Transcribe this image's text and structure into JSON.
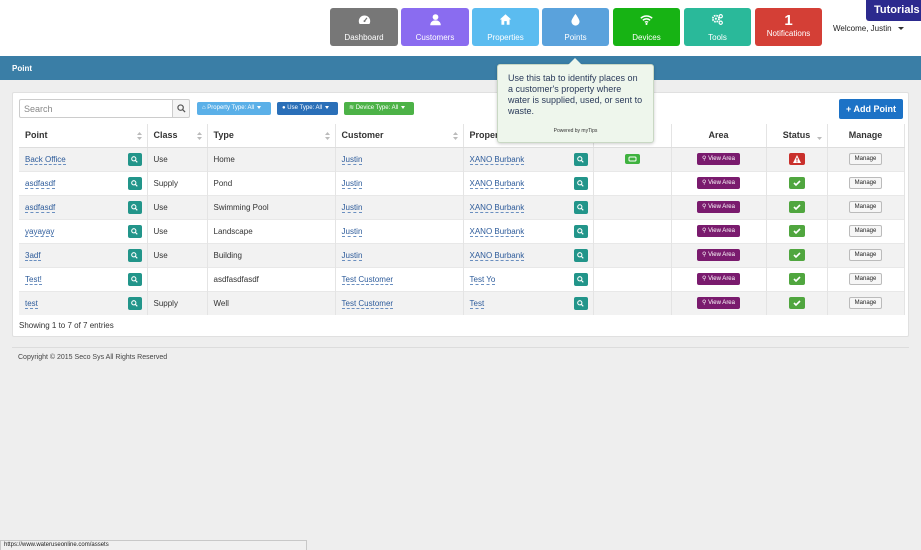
{
  "nav": {
    "tiles": [
      {
        "label": "Dashboard",
        "icon": "dashboard-icon",
        "color": "#777777"
      },
      {
        "label": "Customers",
        "icon": "user-icon",
        "color": "#8a6cf0"
      },
      {
        "label": "Properties",
        "icon": "home-icon",
        "color": "#5bbcf0"
      },
      {
        "label": "Points",
        "icon": "drop-icon",
        "color": "#5aa2dc"
      },
      {
        "label": "Devices",
        "icon": "wifi-icon",
        "color": "#17b314"
      },
      {
        "label": "Tools",
        "icon": "cogs-icon",
        "color": "#2ab99a"
      },
      {
        "label": "Notifications",
        "count": "1",
        "color": "#d43f36"
      }
    ],
    "welcome": "Welcome, Justin",
    "tutorials": "Tutorials"
  },
  "page": {
    "title": "Point"
  },
  "toolbar": {
    "search_placeholder": "Search",
    "filters": [
      {
        "label": "Property Type: All",
        "color": "#5bb0e8"
      },
      {
        "label": "Use Type: All",
        "color": "#2a6fb8"
      },
      {
        "label": "Device Type: All",
        "color": "#4cb247"
      }
    ],
    "add_label": "+ Add Point"
  },
  "table": {
    "columns": [
      "Point",
      "Class",
      "Type",
      "Customer",
      "Proper",
      "",
      "Area",
      "Status",
      "Manage"
    ],
    "view_area_label": "View Area",
    "manage_label": "Manage",
    "rows": [
      {
        "point": "Back Office",
        "class": "Use",
        "type": "Home",
        "customer": "Justin",
        "property": "XANO Burbank",
        "device": true,
        "status": "warning"
      },
      {
        "point": "asdfasdf",
        "class": "Supply",
        "type": "Pond",
        "customer": "Justin",
        "property": "XANO Burbank",
        "device": false,
        "status": "ok"
      },
      {
        "point": "asdfasdf",
        "class": "Use",
        "type": "Swimming Pool",
        "customer": "Justin",
        "property": "XANO Burbank",
        "device": false,
        "status": "ok"
      },
      {
        "point": "yayayay",
        "class": "Use",
        "type": "Landscape",
        "customer": "Justin",
        "property": "XANO Burbank",
        "device": false,
        "status": "ok"
      },
      {
        "point": "3adf",
        "class": "Use",
        "type": "Building",
        "customer": "Justin",
        "property": "XANO Burbank",
        "device": false,
        "status": "ok"
      },
      {
        "point": "Test!",
        "class": "",
        "type": "asdfasdfasdf",
        "customer": "Test Customer",
        "property": "Test Yo",
        "device": false,
        "status": "ok"
      },
      {
        "point": "test",
        "class": "Supply",
        "type": "Well",
        "customer": "Test Customer",
        "property": "Test",
        "device": false,
        "status": "ok"
      }
    ],
    "info": "Showing 1 to 7 of 7 entries"
  },
  "footer": {
    "copyright": "Copyright © 2015 Seco Sys All Rights Reserved"
  },
  "tooltip": {
    "text": "Use this tab to identify places on a customer's property where water is supplied, used, or sent to waste.",
    "powered": "Powered by myTips"
  },
  "statusbar": {
    "url": "https://www.wateruseonline.com/assets"
  }
}
